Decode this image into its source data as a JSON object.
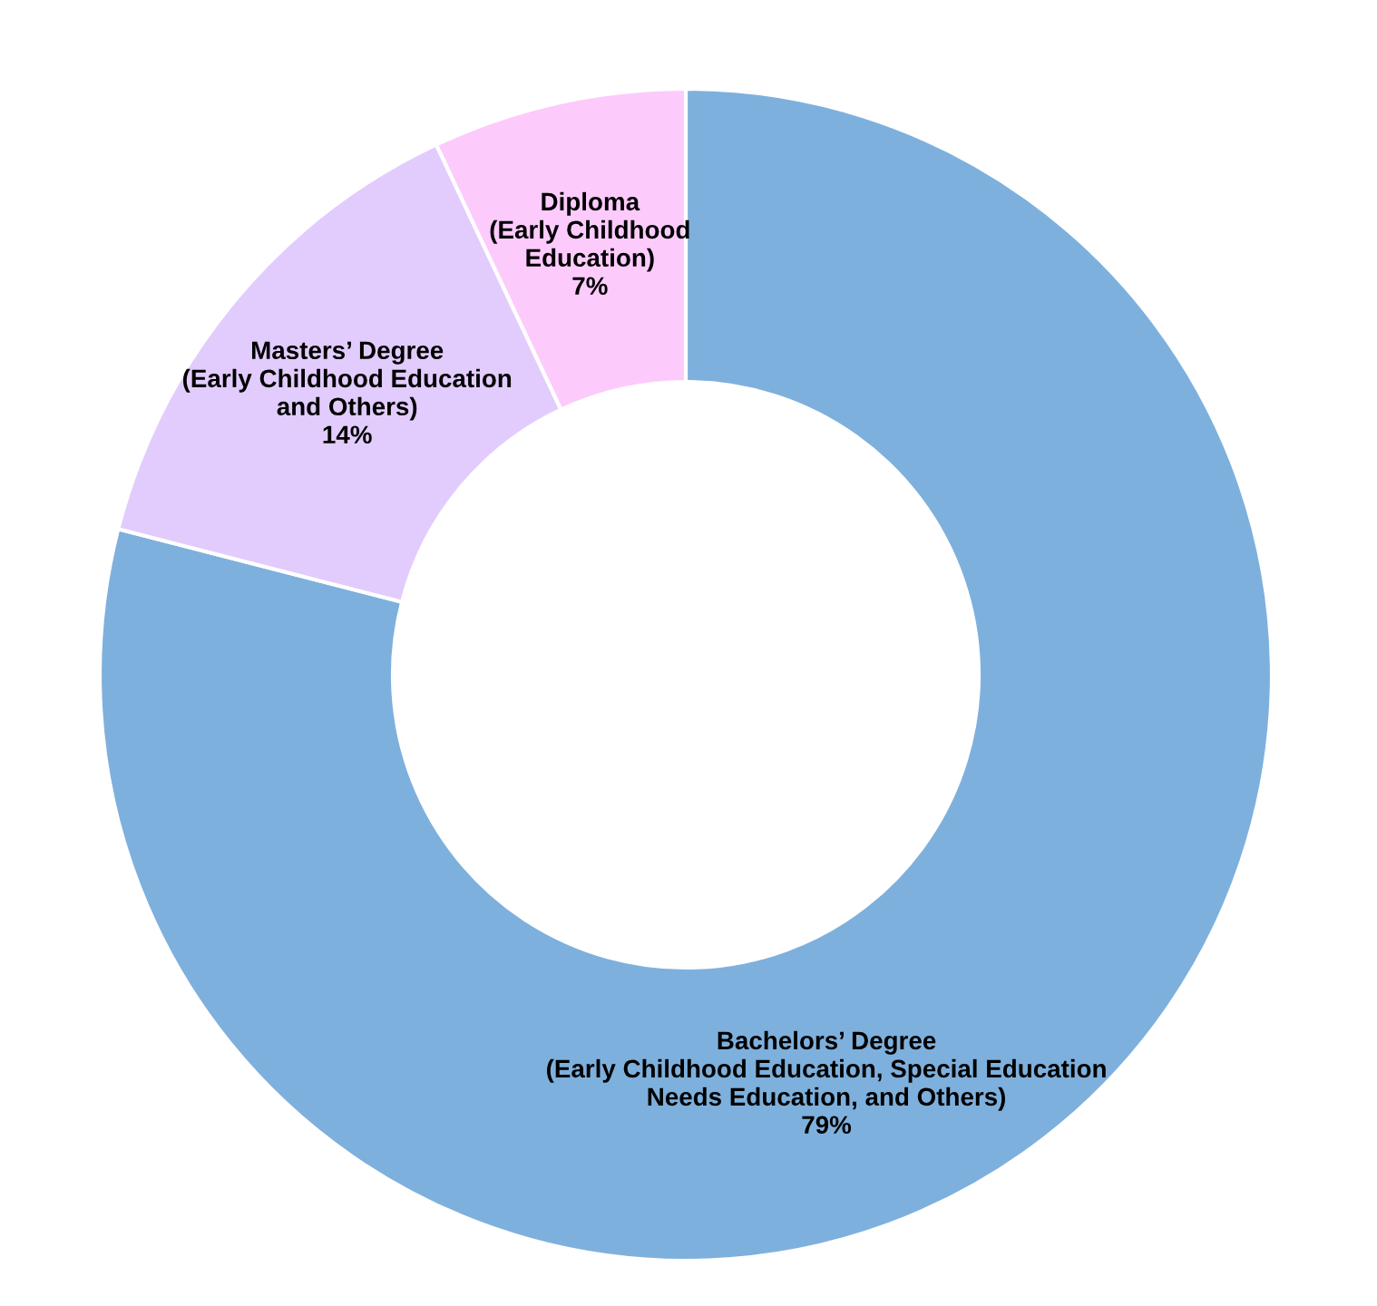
{
  "chart_data": {
    "type": "donut",
    "categories": [
      "Bachelors’ Degree\n(Early Childhood Education, Special Education\nNeeds Education, and Others)",
      "Masters’ Degree\n(Early Childhood Education\nand Others)",
      "Diploma\n(Early Childhood\nEducation)"
    ],
    "values": [
      79,
      14,
      7
    ],
    "value_labels": [
      "79%",
      "14%",
      "7%"
    ],
    "colors": [
      "#7eb0dd",
      "#e2ccfd",
      "#fccbfc"
    ],
    "legend": false
  }
}
